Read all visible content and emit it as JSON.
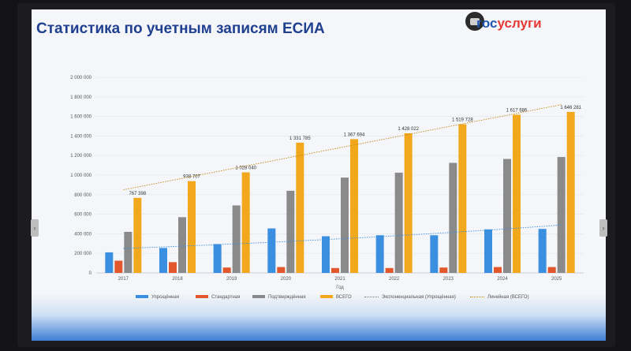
{
  "title": "Статистика по учетным записям ЕСИА",
  "logo": {
    "part1": "гос",
    "part2": "услуги"
  },
  "chart_data": {
    "type": "bar",
    "title": "Статистика по учетным записям ЕСИА",
    "xlabel": "Год",
    "ylabel": "",
    "ylim": [
      0,
      2000000
    ],
    "yticks": [
      0,
      200000,
      400000,
      600000,
      800000,
      1000000,
      1200000,
      1400000,
      1600000,
      1800000,
      2000000
    ],
    "ytick_labels": [
      "0",
      "200 000",
      "400 000",
      "600 000",
      "800 000",
      "1 000 000",
      "1 200 000",
      "1 400 000",
      "1 600 000",
      "1 800 000",
      "2 000 000"
    ],
    "grid": true,
    "legend_position": "bottom",
    "categories": [
      "2017",
      "2018",
      "2019",
      "2020",
      "2021",
      "2022",
      "2023",
      "2024",
      "2025"
    ],
    "series": [
      {
        "name": "Упрощённая",
        "color": "#3b8fe0",
        "values": [
          210000,
          255000,
          295000,
          455000,
          375000,
          385000,
          385000,
          445000,
          450000
        ]
      },
      {
        "name": "Стандартная",
        "color": "#e2572b",
        "values": [
          125000,
          110000,
          55000,
          60000,
          50000,
          50000,
          55000,
          60000,
          60000
        ]
      },
      {
        "name": "Подтверждённая",
        "color": "#8a8a8a",
        "values": [
          420000,
          570000,
          690000,
          840000,
          975000,
          1025000,
          1125000,
          1165000,
          1185000
        ]
      },
      {
        "name": "ВСЕГО",
        "color": "#f2a81d",
        "values": [
          767398,
          938707,
          1028040,
          1331785,
          1367694,
          1428022,
          1519728,
          1617686,
          1646281
        ],
        "labels": [
          "767 398",
          "938 707",
          "1 028 040",
          "1 331 785",
          "1 367 694",
          "1 428 022",
          "1 519 728",
          "1 617 686",
          "1 646 281"
        ]
      }
    ],
    "trendlines": [
      {
        "name": "Экспоненциальная (Упрощённая)",
        "type": "exponential",
        "color": "#3b8fe0",
        "start": 250000,
        "end": 490000
      },
      {
        "name": "Линейная (ВСЕГО)",
        "type": "linear",
        "color": "#c48a10",
        "start": 850000,
        "end": 1720000
      }
    ]
  }
}
